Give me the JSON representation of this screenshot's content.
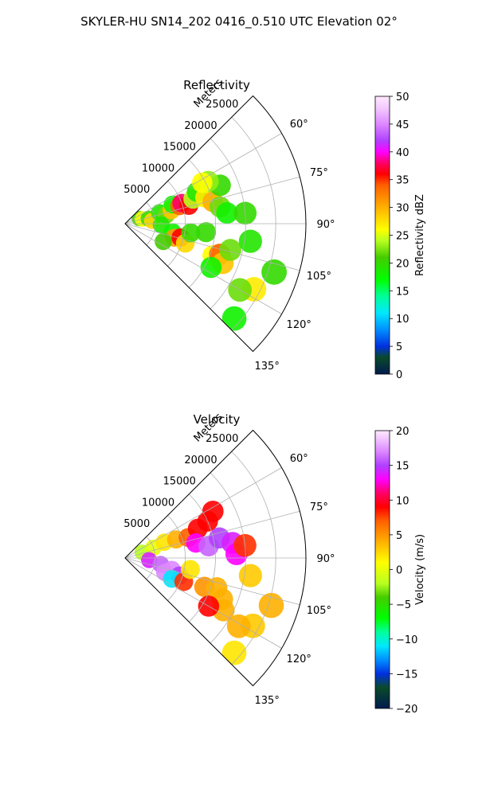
{
  "suptitle": "SKYLER-HU  SN14_202  0416_0.510 UTC Elevation 02°",
  "chart_data": [
    {
      "type": "heatmap",
      "subtype": "polar-sector",
      "title": "Reflectivity",
      "radial_axis_label": "Meters",
      "radial_ticks": [
        5000,
        10000,
        15000,
        20000,
        25000
      ],
      "radial_tick_labels": [
        "5000",
        "10000",
        "15000",
        "20000",
        "25000"
      ],
      "rlim": [
        0,
        30000
      ],
      "theta_range_deg": [
        45,
        135
      ],
      "theta_ticks": [
        60,
        75,
        90,
        105,
        120,
        135
      ],
      "theta_tick_labels": [
        "60°",
        "75°",
        "90°",
        "105°",
        "120°",
        "135°"
      ],
      "grid": true,
      "colorbar": {
        "label": "Reflectivity dBZ",
        "range": [
          0,
          50
        ],
        "ticks": [
          0,
          5,
          10,
          15,
          20,
          25,
          30,
          35,
          40,
          45,
          50
        ],
        "tick_labels": [
          "0",
          "5",
          "10",
          "15",
          "20",
          "25",
          "30",
          "35",
          "40",
          "45",
          "50"
        ],
        "stops": [
          [
            0,
            "#001b4d"
          ],
          [
            3,
            "#0a4a2a"
          ],
          [
            5,
            "#0030e0"
          ],
          [
            8,
            "#0090ff"
          ],
          [
            11,
            "#00e8ff"
          ],
          [
            14,
            "#00ff9a"
          ],
          [
            17,
            "#00ff00"
          ],
          [
            21,
            "#44cc00"
          ],
          [
            24,
            "#b8ff20"
          ],
          [
            26,
            "#ffff00"
          ],
          [
            30,
            "#ffb000"
          ],
          [
            34,
            "#ff6000"
          ],
          [
            36,
            "#ff0000"
          ],
          [
            38,
            "#ff0066"
          ],
          [
            40,
            "#ff00ff"
          ],
          [
            42,
            "#b040ff"
          ],
          [
            45,
            "#dd88ff"
          ],
          [
            48,
            "#f4ccff"
          ],
          [
            50,
            "#ffe8ff"
          ]
        ]
      },
      "cells": [
        {
          "range_m": 2500,
          "theta_deg": 70,
          "value": 21
        },
        {
          "range_m": 3000,
          "theta_deg": 75,
          "value": 26
        },
        {
          "range_m": 4000,
          "theta_deg": 78,
          "value": 20
        },
        {
          "range_m": 4500,
          "theta_deg": 84,
          "value": 28
        },
        {
          "range_m": 6000,
          "theta_deg": 72,
          "value": 19
        },
        {
          "range_m": 7000,
          "theta_deg": 78,
          "value": 22
        },
        {
          "range_m": 8000,
          "theta_deg": 74,
          "value": 29
        },
        {
          "range_m": 8500,
          "theta_deg": 68,
          "value": 18
        },
        {
          "range_m": 9500,
          "theta_deg": 72,
          "value": 34
        },
        {
          "range_m": 10000,
          "theta_deg": 70,
          "value": 38
        },
        {
          "range_m": 11000,
          "theta_deg": 74,
          "value": 36
        },
        {
          "range_m": 12000,
          "theta_deg": 70,
          "value": 24
        },
        {
          "range_m": 13000,
          "theta_deg": 66,
          "value": 19
        },
        {
          "range_m": 14000,
          "theta_deg": 72,
          "value": 27
        },
        {
          "range_m": 15000,
          "theta_deg": 76,
          "value": 30
        },
        {
          "range_m": 16000,
          "theta_deg": 80,
          "value": 22
        },
        {
          "range_m": 17000,
          "theta_deg": 68,
          "value": 20
        },
        {
          "range_m": 17000,
          "theta_deg": 84,
          "value": 18
        },
        {
          "range_m": 15500,
          "theta_deg": 63,
          "value": 23
        },
        {
          "range_m": 14500,
          "theta_deg": 62,
          "value": 26
        },
        {
          "range_m": 20000,
          "theta_deg": 85,
          "value": 20
        },
        {
          "range_m": 6000,
          "theta_deg": 92,
          "value": 19
        },
        {
          "range_m": 8000,
          "theta_deg": 100,
          "value": 18
        },
        {
          "range_m": 8500,
          "theta_deg": 106,
          "value": 31
        },
        {
          "range_m": 9500,
          "theta_deg": 104,
          "value": 36
        },
        {
          "range_m": 10500,
          "theta_deg": 108,
          "value": 28
        },
        {
          "range_m": 7000,
          "theta_deg": 115,
          "value": 21
        },
        {
          "range_m": 11000,
          "theta_deg": 98,
          "value": 20
        },
        {
          "range_m": 13500,
          "theta_deg": 96,
          "value": 20
        },
        {
          "range_m": 15500,
          "theta_deg": 110,
          "value": 26
        },
        {
          "range_m": 16500,
          "theta_deg": 108,
          "value": 34
        },
        {
          "range_m": 17500,
          "theta_deg": 112,
          "value": 29
        },
        {
          "range_m": 18000,
          "theta_deg": 104,
          "value": 22
        },
        {
          "range_m": 16000,
          "theta_deg": 117,
          "value": 18
        },
        {
          "range_m": 21000,
          "theta_deg": 98,
          "value": 19
        },
        {
          "range_m": 26000,
          "theta_deg": 108,
          "value": 20
        },
        {
          "range_m": 24000,
          "theta_deg": 117,
          "value": 27
        },
        {
          "range_m": 22000,
          "theta_deg": 120,
          "value": 22
        },
        {
          "range_m": 24000,
          "theta_deg": 131,
          "value": 18
        }
      ]
    },
    {
      "type": "heatmap",
      "subtype": "polar-sector",
      "title": "Velocity",
      "radial_axis_label": "Meters",
      "radial_ticks": [
        5000,
        10000,
        15000,
        20000,
        25000
      ],
      "radial_tick_labels": [
        "5000",
        "10000",
        "15000",
        "20000",
        "25000"
      ],
      "rlim": [
        0,
        30000
      ],
      "theta_range_deg": [
        45,
        135
      ],
      "theta_ticks": [
        60,
        75,
        90,
        105,
        120,
        135
      ],
      "theta_tick_labels": [
        "60°",
        "75°",
        "90°",
        "105°",
        "120°",
        "135°"
      ],
      "grid": true,
      "colorbar": {
        "label": "Velocity (m/s)",
        "range": [
          -20,
          20
        ],
        "ticks": [
          -20,
          -15,
          -10,
          -5,
          0,
          5,
          10,
          15,
          20
        ],
        "tick_labels": [
          "−20",
          "−15",
          "−10",
          "−5",
          "0",
          "5",
          "10",
          "15",
          "20"
        ],
        "stops": [
          [
            -20,
            "#001b4d"
          ],
          [
            -17,
            "#0a4a2a"
          ],
          [
            -15,
            "#0030e0"
          ],
          [
            -13,
            "#0090ff"
          ],
          [
            -11,
            "#00e8ff"
          ],
          [
            -9,
            "#00ff9a"
          ],
          [
            -7,
            "#00ff00"
          ],
          [
            -4,
            "#44cc00"
          ],
          [
            -2,
            "#b8ff20"
          ],
          [
            1,
            "#ffff00"
          ],
          [
            4,
            "#ffb000"
          ],
          [
            7,
            "#ff6000"
          ],
          [
            9,
            "#ff0000"
          ],
          [
            11,
            "#ff0066"
          ],
          [
            13,
            "#ff00ff"
          ],
          [
            15,
            "#b040ff"
          ],
          [
            17,
            "#dd88ff"
          ],
          [
            19,
            "#f4ccff"
          ],
          [
            20,
            "#ffe8ff"
          ]
        ]
      },
      "cells": [
        {
          "range_m": 3000,
          "theta_deg": 72,
          "value": -2
        },
        {
          "range_m": 5000,
          "theta_deg": 70,
          "value": 0
        },
        {
          "range_m": 7000,
          "theta_deg": 68,
          "value": 2
        },
        {
          "range_m": 9000,
          "theta_deg": 70,
          "value": 4
        },
        {
          "range_m": 11000,
          "theta_deg": 72,
          "value": 7
        },
        {
          "range_m": 13000,
          "theta_deg": 68,
          "value": 9
        },
        {
          "range_m": 15000,
          "theta_deg": 66,
          "value": 9
        },
        {
          "range_m": 16500,
          "theta_deg": 62,
          "value": 9
        },
        {
          "range_m": 12000,
          "theta_deg": 78,
          "value": 13
        },
        {
          "range_m": 14000,
          "theta_deg": 82,
          "value": 16
        },
        {
          "range_m": 16000,
          "theta_deg": 78,
          "value": 15
        },
        {
          "range_m": 18000,
          "theta_deg": 82,
          "value": 14
        },
        {
          "range_m": 18500,
          "theta_deg": 88,
          "value": 13
        },
        {
          "range_m": 20000,
          "theta_deg": 84,
          "value": 8
        },
        {
          "range_m": 4000,
          "theta_deg": 95,
          "value": 14
        },
        {
          "range_m": 6000,
          "theta_deg": 100,
          "value": 16
        },
        {
          "range_m": 8000,
          "theta_deg": 104,
          "value": 17
        },
        {
          "range_m": 9500,
          "theta_deg": 108,
          "value": 15
        },
        {
          "range_m": 7000,
          "theta_deg": 110,
          "value": 17
        },
        {
          "range_m": 8500,
          "theta_deg": 114,
          "value": -11
        },
        {
          "range_m": 10500,
          "theta_deg": 112,
          "value": 8
        },
        {
          "range_m": 11000,
          "theta_deg": 100,
          "value": 2
        },
        {
          "range_m": 14000,
          "theta_deg": 110,
          "value": 5
        },
        {
          "range_m": 16000,
          "theta_deg": 108,
          "value": 4
        },
        {
          "range_m": 17500,
          "theta_deg": 113,
          "value": 4
        },
        {
          "range_m": 18500,
          "theta_deg": 118,
          "value": 4
        },
        {
          "range_m": 16000,
          "theta_deg": 120,
          "value": 9
        },
        {
          "range_m": 21000,
          "theta_deg": 98,
          "value": 3
        },
        {
          "range_m": 25500,
          "theta_deg": 108,
          "value": 4
        },
        {
          "range_m": 24000,
          "theta_deg": 118,
          "value": 3
        },
        {
          "range_m": 22000,
          "theta_deg": 121,
          "value": 4
        },
        {
          "range_m": 24000,
          "theta_deg": 131,
          "value": 2
        }
      ]
    }
  ]
}
